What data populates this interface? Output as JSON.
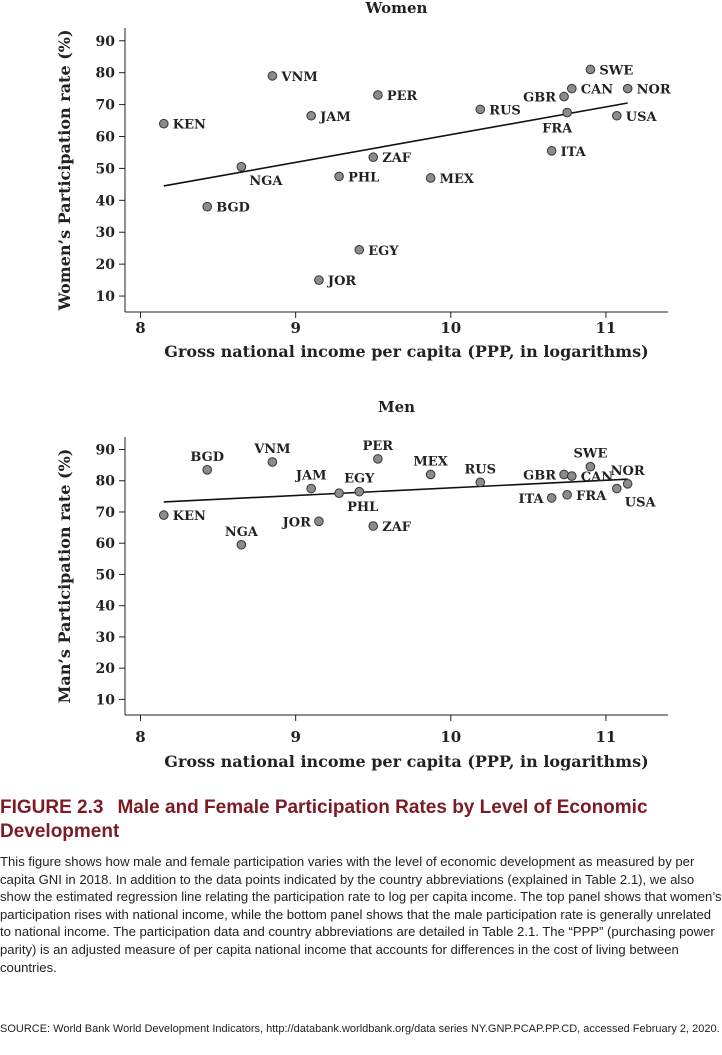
{
  "chart_data": [
    {
      "type": "scatter",
      "title": "Women",
      "xlabel": "Gross national income per capita (PPP, in logarithms)",
      "ylabel": "Women’s Participation rate (%)",
      "xlim": [
        7.9,
        11.4
      ],
      "ylim": [
        5,
        94
      ],
      "xticks": [
        8,
        9,
        10,
        11
      ],
      "yticks": [
        10,
        20,
        30,
        40,
        50,
        60,
        70,
        80,
        90
      ],
      "grid": false,
      "regression_line": {
        "x": [
          8.15,
          11.14
        ],
        "y": [
          44.5,
          70.5
        ]
      },
      "points": [
        {
          "label": "KEN",
          "x": 8.15,
          "y": 64,
          "label_pos": "right"
        },
        {
          "label": "BGD",
          "x": 8.43,
          "y": 38,
          "label_pos": "right"
        },
        {
          "label": "NGA",
          "x": 8.65,
          "y": 50.5,
          "label_pos": "below-right"
        },
        {
          "label": "VNM",
          "x": 8.85,
          "y": 79,
          "label_pos": "right"
        },
        {
          "label": "JAM",
          "x": 9.1,
          "y": 66.5,
          "label_pos": "right"
        },
        {
          "label": "JOR",
          "x": 9.15,
          "y": 15,
          "label_pos": "right"
        },
        {
          "label": "PHL",
          "x": 9.28,
          "y": 47.5,
          "label_pos": "right"
        },
        {
          "label": "EGY",
          "x": 9.41,
          "y": 24.5,
          "label_pos": "right"
        },
        {
          "label": "ZAF",
          "x": 9.5,
          "y": 53.5,
          "label_pos": "right"
        },
        {
          "label": "PER",
          "x": 9.53,
          "y": 73,
          "label_pos": "right"
        },
        {
          "label": "MEX",
          "x": 9.87,
          "y": 47,
          "label_pos": "right"
        },
        {
          "label": "RUS",
          "x": 10.19,
          "y": 68.5,
          "label_pos": "right"
        },
        {
          "label": "ITA",
          "x": 10.65,
          "y": 55.5,
          "label_pos": "right"
        },
        {
          "label": "GBR",
          "x": 10.73,
          "y": 72.5,
          "label_pos": "left"
        },
        {
          "label": "FRA",
          "x": 10.75,
          "y": 67.5,
          "label_pos": "below"
        },
        {
          "label": "CAN",
          "x": 10.78,
          "y": 75,
          "label_pos": "right"
        },
        {
          "label": "SWE",
          "x": 10.9,
          "y": 81,
          "label_pos": "right"
        },
        {
          "label": "USA",
          "x": 11.07,
          "y": 66.5,
          "label_pos": "right"
        },
        {
          "label": "NOR",
          "x": 11.14,
          "y": 75,
          "label_pos": "right"
        }
      ]
    },
    {
      "type": "scatter",
      "title": "Men",
      "xlabel": "Gross national income per capita (PPP, in logarithms)",
      "ylabel": "Man’s Participation rate (%)",
      "xlim": [
        7.9,
        11.4
      ],
      "ylim": [
        5,
        94
      ],
      "xticks": [
        8,
        9,
        10,
        11
      ],
      "yticks": [
        10,
        20,
        30,
        40,
        50,
        60,
        70,
        80,
        90
      ],
      "grid": false,
      "regression_line": {
        "x": [
          8.15,
          11.14
        ],
        "y": [
          73.2,
          80.5
        ]
      },
      "points": [
        {
          "label": "KEN",
          "x": 8.15,
          "y": 69,
          "label_pos": "right"
        },
        {
          "label": "BGD",
          "x": 8.43,
          "y": 83.5,
          "label_pos": "above"
        },
        {
          "label": "NGA",
          "x": 8.65,
          "y": 59.5,
          "label_pos": "above"
        },
        {
          "label": "VNM",
          "x": 8.85,
          "y": 86,
          "label_pos": "above"
        },
        {
          "label": "JAM",
          "x": 9.1,
          "y": 77.5,
          "label_pos": "above"
        },
        {
          "label": "JOR",
          "x": 9.15,
          "y": 67,
          "label_pos": "left"
        },
        {
          "label": "PHL",
          "x": 9.28,
          "y": 76,
          "label_pos": "below-right"
        },
        {
          "label": "EGY",
          "x": 9.41,
          "y": 76.5,
          "label_pos": "above"
        },
        {
          "label": "ZAF",
          "x": 9.5,
          "y": 65.5,
          "label_pos": "right"
        },
        {
          "label": "PER",
          "x": 9.53,
          "y": 87,
          "label_pos": "above"
        },
        {
          "label": "MEX",
          "x": 9.87,
          "y": 82,
          "label_pos": "above"
        },
        {
          "label": "RUS",
          "x": 10.19,
          "y": 79.5,
          "label_pos": "above"
        },
        {
          "label": "ITA",
          "x": 10.65,
          "y": 74.5,
          "label_pos": "left"
        },
        {
          "label": "GBR",
          "x": 10.73,
          "y": 82,
          "label_pos": "left"
        },
        {
          "label": "FRA",
          "x": 10.75,
          "y": 75.5,
          "label_pos": "right"
        },
        {
          "label": "CAN",
          "x": 10.78,
          "y": 81.5,
          "label_pos": "right"
        },
        {
          "label": "SWE",
          "x": 10.9,
          "y": 84.5,
          "label_pos": "above"
        },
        {
          "label": "USA",
          "x": 11.07,
          "y": 77.5,
          "label_pos": "below-right"
        },
        {
          "label": "NOR",
          "x": 11.14,
          "y": 79,
          "label_pos": "above"
        }
      ]
    }
  ],
  "figure": {
    "number": "FIGURE 2.3",
    "title": "Male and Female Participation Rates by Level of Economic Development",
    "caption": "This figure shows how male and female participation varies with the level of economic development as measured by per capita GNI in 2018. In addition to the data points indicated by the country abbreviations (explained in Table 2.1), we also show the estimated regression line relating the participation rate to log per capita income. The top panel shows that women’s participation rises with national income, while the bottom panel shows that the male participation rate is generally unrelated to national income. The participation data and country abbreviations are detailed in Table 2.1. The “PPP” (purchasing power parity) is an adjusted measure of per capita national income that accounts for differences in the cost of living between countries.",
    "source": "SOURCE: World Bank World Development Indicators, http://databank.worldbank.org/data series NY.GNP.PCAP.PP.CD, accessed February 2, 2020."
  },
  "colors": {
    "marker_fill": "#8c8c8c",
    "marker_stroke": "#333333",
    "axis": "#222222",
    "figure_title": "#7a1b26"
  }
}
